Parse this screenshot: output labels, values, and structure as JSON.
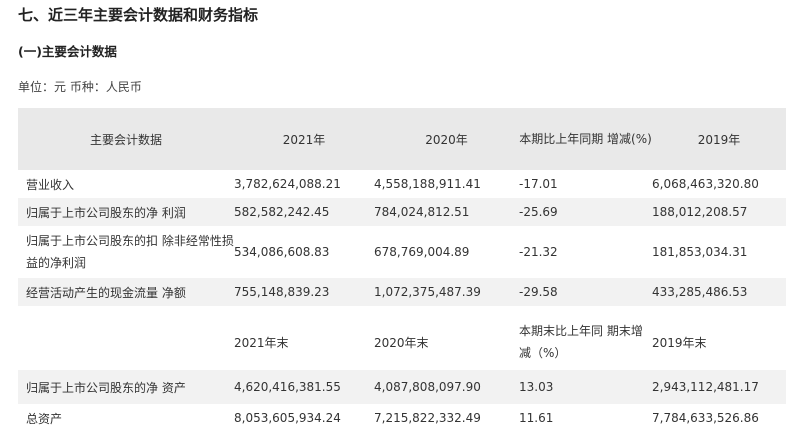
{
  "section_title": "七、近三年主要会计数据和财务指标",
  "subsection_title": "(一)主要会计数据",
  "unit_line": "单位：元 币种：人民币",
  "table": {
    "header": [
      "主要会计数据",
      "2021年",
      "2020年",
      "本期比上年同期 增减(%)",
      "2019年"
    ],
    "rows": [
      [
        "营业收入",
        "3,782,624,088.21",
        "4,558,188,911.41",
        "-17.01",
        "6,068,463,320.80"
      ],
      [
        "归属于上市公司股东的净 利润",
        "582,582,242.45",
        "784,024,812.51",
        "-25.69",
        "188,012,208.57"
      ],
      [
        "归属于上市公司股东的扣 除非经常性损益的净利润",
        "534,086,608.83",
        "678,769,004.89",
        "-21.32",
        "181,853,034.31"
      ],
      [
        "经营活动产生的现金流量 净额",
        "755,148,839.23",
        "1,072,375,487.39",
        "-29.58",
        "433,285,486.53"
      ]
    ],
    "subheader": [
      "",
      "2021年末",
      "2020年末",
      "本期末比上年同 期末增减（%）",
      "2019年末"
    ],
    "rows2": [
      [
        "归属于上市公司股东的净 资产",
        "4,620,416,381.55",
        "4,087,808,097.90",
        "13.03",
        "2,943,112,481.17"
      ],
      [
        "总资产",
        "8,053,605,934.24",
        "7,215,822,332.49",
        "11.61",
        "7,784,633,526.86"
      ]
    ]
  }
}
